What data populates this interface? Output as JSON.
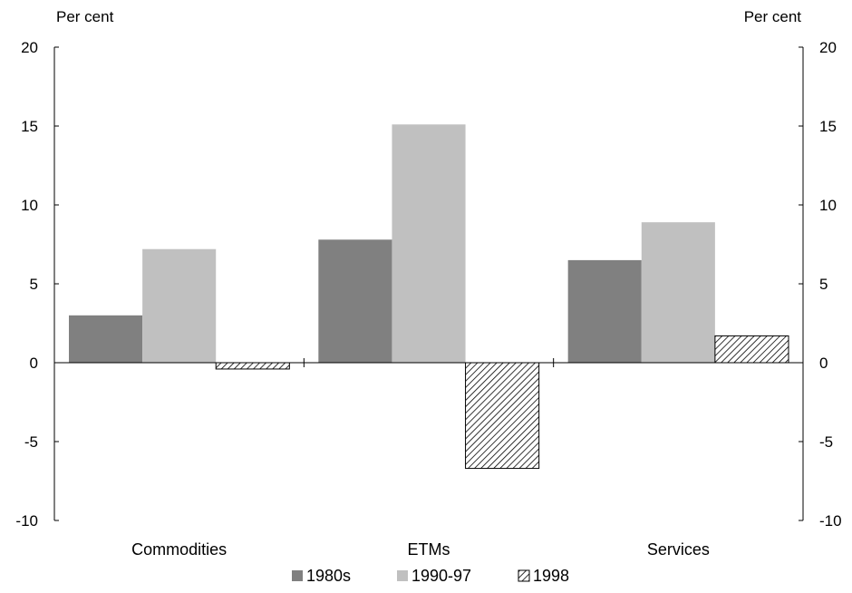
{
  "chart_data": {
    "type": "bar",
    "title": "",
    "left_axis_label": "Per cent",
    "right_axis_label": "Per cent",
    "categories": [
      "Commodities",
      "ETMs",
      "Services"
    ],
    "series": [
      {
        "name": "1980s",
        "values": [
          3.0,
          7.8,
          6.5
        ],
        "color": "#808080",
        "pattern": "solid"
      },
      {
        "name": "1990-97",
        "values": [
          7.2,
          15.1,
          8.9
        ],
        "color": "#c0c0c0",
        "pattern": "solid"
      },
      {
        "name": "1998",
        "values": [
          -0.4,
          -6.7,
          1.7
        ],
        "color": "#000000",
        "pattern": "hatch"
      }
    ],
    "ylim": [
      -10,
      20
    ],
    "yticks": [
      "-10",
      "-5",
      "0",
      "5",
      "10",
      "15",
      "20"
    ],
    "ytick_values": [
      -10,
      -5,
      0,
      5,
      10,
      15,
      20
    ],
    "grid": false,
    "legend_position": "bottom-center"
  }
}
